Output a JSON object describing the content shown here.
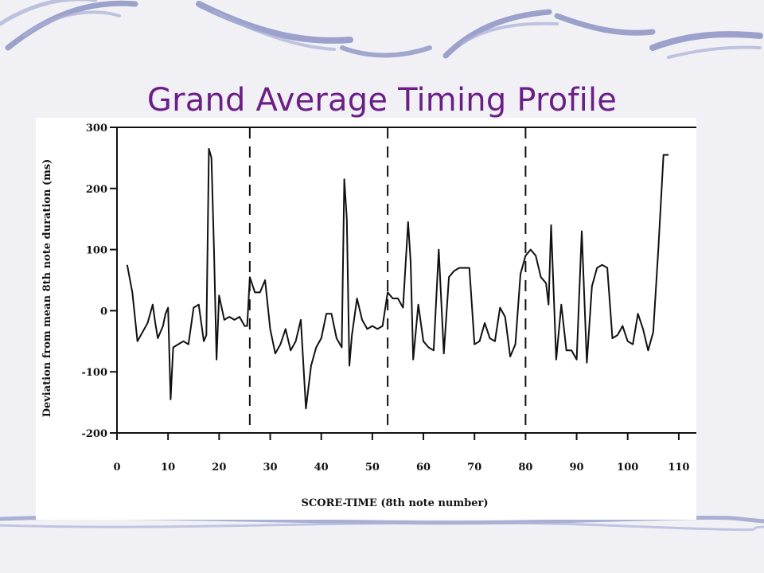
{
  "slide": {
    "title": "Grand Average Timing Profile",
    "title_color": "#6b1f86",
    "swoosh_color": "#8c94c4"
  },
  "chart_data": {
    "type": "line",
    "title": "",
    "xlabel": "SCORE-TIME (8th note number)",
    "ylabel": "Deviation from mean 8th note duration (ms)",
    "xlim": [
      0,
      115
    ],
    "ylim": [
      -200,
      300
    ],
    "xticks": [
      0,
      10,
      20,
      30,
      40,
      50,
      60,
      70,
      80,
      90,
      100,
      110
    ],
    "yticks": [
      -200,
      -100,
      0,
      100,
      200,
      300
    ],
    "grid": false,
    "line_color": "#111111",
    "vertical_dashed_lines": [
      26,
      53,
      80
    ],
    "series": [
      {
        "name": "",
        "points": [
          [
            2,
            75
          ],
          [
            3,
            30
          ],
          [
            4,
            -50
          ],
          [
            5,
            -35
          ],
          [
            6,
            -20
          ],
          [
            7,
            10
          ],
          [
            7.5,
            -20
          ],
          [
            8,
            -45
          ],
          [
            9,
            -25
          ],
          [
            9.5,
            -5
          ],
          [
            10,
            5
          ],
          [
            10.5,
            -145
          ],
          [
            11,
            -60
          ],
          [
            12,
            -55
          ],
          [
            13,
            -50
          ],
          [
            14,
            -55
          ],
          [
            15,
            5
          ],
          [
            16,
            10
          ],
          [
            17,
            -50
          ],
          [
            17.5,
            -40
          ],
          [
            18,
            265
          ],
          [
            18.5,
            250
          ],
          [
            19,
            100
          ],
          [
            19.5,
            -80
          ],
          [
            20,
            25
          ],
          [
            21,
            -15
          ],
          [
            22,
            -10
          ],
          [
            23,
            -15
          ],
          [
            24,
            -10
          ],
          [
            25,
            -25
          ],
          [
            25.5,
            -25
          ],
          [
            26,
            55
          ],
          [
            27,
            30
          ],
          [
            28,
            30
          ],
          [
            29,
            50
          ],
          [
            30,
            -30
          ],
          [
            31,
            -70
          ],
          [
            32,
            -55
          ],
          [
            33,
            -30
          ],
          [
            34,
            -65
          ],
          [
            35,
            -50
          ],
          [
            36,
            -15
          ],
          [
            37,
            -160
          ],
          [
            38,
            -90
          ],
          [
            39,
            -60
          ],
          [
            40,
            -45
          ],
          [
            41,
            -5
          ],
          [
            42,
            -5
          ],
          [
            43,
            -45
          ],
          [
            44,
            -60
          ],
          [
            44.5,
            215
          ],
          [
            45,
            150
          ],
          [
            45.5,
            -90
          ],
          [
            46,
            -40
          ],
          [
            47,
            20
          ],
          [
            48,
            -15
          ],
          [
            49,
            -30
          ],
          [
            50,
            -25
          ],
          [
            51,
            -30
          ],
          [
            52,
            -25
          ],
          [
            53,
            30
          ],
          [
            54,
            20
          ],
          [
            55,
            20
          ],
          [
            56,
            5
          ],
          [
            57,
            145
          ],
          [
            57.5,
            80
          ],
          [
            58,
            -80
          ],
          [
            59,
            10
          ],
          [
            60,
            -50
          ],
          [
            61,
            -60
          ],
          [
            62,
            -65
          ],
          [
            63,
            100
          ],
          [
            64,
            -70
          ],
          [
            65,
            55
          ],
          [
            66,
            65
          ],
          [
            67,
            70
          ],
          [
            68,
            70
          ],
          [
            69,
            70
          ],
          [
            70,
            -55
          ],
          [
            71,
            -50
          ],
          [
            72,
            -20
          ],
          [
            73,
            -45
          ],
          [
            74,
            -50
          ],
          [
            75,
            5
          ],
          [
            76,
            -10
          ],
          [
            77,
            -75
          ],
          [
            78,
            -55
          ],
          [
            79,
            60
          ],
          [
            80,
            90
          ],
          [
            81,
            100
          ],
          [
            82,
            90
          ],
          [
            83,
            55
          ],
          [
            84,
            45
          ],
          [
            84.5,
            10
          ],
          [
            85,
            140
          ],
          [
            86,
            -80
          ],
          [
            87,
            10
          ],
          [
            88,
            -65
          ],
          [
            89,
            -65
          ],
          [
            90,
            -80
          ],
          [
            91,
            130
          ],
          [
            92,
            -85
          ],
          [
            93,
            40
          ],
          [
            94,
            70
          ],
          [
            95,
            75
          ],
          [
            96,
            70
          ],
          [
            97,
            -45
          ],
          [
            98,
            -40
          ],
          [
            99,
            -25
          ],
          [
            100,
            -50
          ],
          [
            101,
            -55
          ],
          [
            102,
            -5
          ],
          [
            103,
            -30
          ],
          [
            104,
            -65
          ],
          [
            105,
            -35
          ],
          [
            106,
            100
          ],
          [
            107,
            255
          ],
          [
            108,
            255
          ]
        ]
      }
    ]
  }
}
